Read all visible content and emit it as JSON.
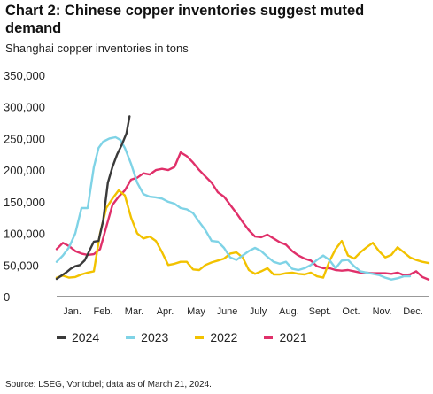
{
  "header": {
    "title": "Chart 2: Chinese copper inventories suggest muted demand",
    "subtitle": "Shanghai copper inventories in tons"
  },
  "source": "Source: LSEG, Vontobel; data as of March 21, 2024.",
  "chart_data": {
    "type": "line",
    "title": "Chart 2: Chinese copper inventories suggest muted demand",
    "subtitle": "Shanghai copper inventories in tons",
    "xlabel": "",
    "ylabel": "",
    "ylim": [
      0,
      350000
    ],
    "yticks": [
      0,
      50000,
      100000,
      150000,
      200000,
      250000,
      300000,
      350000
    ],
    "ytick_labels": [
      "0",
      "50,000",
      "100,000",
      "150,000",
      "200,000",
      "250,000",
      "300,000",
      "350,000"
    ],
    "xlim": [
      0,
      12
    ],
    "month_labels": [
      "Jan.",
      "Feb.",
      "Mar.",
      "Apr.",
      "May",
      "June",
      "July",
      "Aug.",
      "Sept.",
      "Oct.",
      "Nov.",
      "Dec."
    ],
    "grid": false,
    "legend_position": "bottom",
    "series": [
      {
        "name": "2024",
        "color": "#3a3a3a",
        "x": [
          0.0,
          0.15,
          0.3,
          0.45,
          0.6,
          0.75,
          0.9,
          1.05,
          1.2,
          1.35,
          1.5,
          1.65,
          1.8,
          1.95,
          2.1,
          2.25,
          2.35
        ],
        "y": [
          28000,
          33000,
          38000,
          44000,
          48000,
          50000,
          57000,
          72000,
          87000,
          88000,
          120000,
          180000,
          205000,
          225000,
          240000,
          258000,
          285000
        ]
      },
      {
        "name": "2023",
        "color": "#7fd3e6",
        "x": [
          0.0,
          0.2,
          0.4,
          0.6,
          0.8,
          1.0,
          1.2,
          1.35,
          1.5,
          1.7,
          1.9,
          2.05,
          2.2,
          2.4,
          2.6,
          2.8,
          3.0,
          3.2,
          3.4,
          3.6,
          3.8,
          4.0,
          4.2,
          4.4,
          4.6,
          4.8,
          5.0,
          5.2,
          5.4,
          5.6,
          5.8,
          6.0,
          6.2,
          6.4,
          6.6,
          6.8,
          7.0,
          7.2,
          7.4,
          7.6,
          7.8,
          8.0,
          8.2,
          8.4,
          8.6,
          8.8,
          9.0,
          9.2,
          9.4,
          9.6,
          9.8,
          10.0,
          10.2,
          10.4,
          10.6,
          10.8,
          11.0,
          11.2,
          11.4
        ],
        "y": [
          55000,
          65000,
          78000,
          100000,
          140000,
          140000,
          205000,
          235000,
          245000,
          250000,
          252000,
          248000,
          235000,
          210000,
          180000,
          162000,
          158000,
          157000,
          155000,
          150000,
          147000,
          140000,
          138000,
          132000,
          118000,
          105000,
          88000,
          87000,
          77000,
          62000,
          58000,
          65000,
          72000,
          77000,
          72000,
          63000,
          55000,
          52000,
          55000,
          44000,
          42000,
          45000,
          50000,
          58000,
          65000,
          58000,
          45000,
          57000,
          58000,
          48000,
          40000,
          38000,
          36000,
          34000,
          30000,
          27000,
          29000,
          32000,
          32000
        ]
      },
      {
        "name": "2022",
        "color": "#f2c200",
        "x": [
          0.0,
          0.2,
          0.4,
          0.6,
          0.8,
          1.0,
          1.2,
          1.4,
          1.6,
          1.8,
          2.0,
          2.2,
          2.4,
          2.6,
          2.8,
          3.0,
          3.2,
          3.4,
          3.6,
          3.8,
          4.0,
          4.2,
          4.4,
          4.6,
          4.8,
          5.0,
          5.2,
          5.4,
          5.6,
          5.8,
          6.0,
          6.2,
          6.4,
          6.6,
          6.8,
          7.0,
          7.2,
          7.4,
          7.6,
          7.8,
          8.0,
          8.2,
          8.4,
          8.6,
          8.8,
          9.0,
          9.2,
          9.4,
          9.6,
          9.8,
          10.0,
          10.2,
          10.4,
          10.6,
          10.8,
          11.0,
          11.2,
          11.4,
          11.6,
          11.8,
          12.0
        ],
        "y": [
          30000,
          33000,
          30000,
          31000,
          35000,
          38000,
          40000,
          100000,
          140000,
          155000,
          168000,
          160000,
          125000,
          100000,
          92000,
          95000,
          88000,
          70000,
          50000,
          52000,
          55000,
          55000,
          43000,
          42000,
          50000,
          54000,
          57000,
          60000,
          68000,
          70000,
          62000,
          42000,
          36000,
          40000,
          45000,
          35000,
          35000,
          37000,
          38000,
          36000,
          35000,
          38000,
          32000,
          30000,
          56000,
          75000,
          88000,
          65000,
          60000,
          70000,
          78000,
          85000,
          72000,
          62000,
          66000,
          78000,
          70000,
          62000,
          58000,
          55000,
          53000
        ]
      },
      {
        "name": "2021",
        "color": "#e0306a",
        "x": [
          0.0,
          0.2,
          0.4,
          0.6,
          0.8,
          1.0,
          1.2,
          1.4,
          1.6,
          1.8,
          2.0,
          2.2,
          2.4,
          2.6,
          2.8,
          3.0,
          3.2,
          3.4,
          3.6,
          3.8,
          4.0,
          4.2,
          4.4,
          4.6,
          4.8,
          5.0,
          5.2,
          5.4,
          5.6,
          5.8,
          6.0,
          6.2,
          6.4,
          6.6,
          6.8,
          7.0,
          7.2,
          7.4,
          7.6,
          7.8,
          8.0,
          8.2,
          8.4,
          8.6,
          8.8,
          9.0,
          9.2,
          9.4,
          9.6,
          9.8,
          10.0,
          10.2,
          10.4,
          10.6,
          10.8,
          11.0,
          11.2,
          11.4,
          11.6,
          11.8,
          12.0
        ],
        "y": [
          75000,
          85000,
          80000,
          72000,
          68000,
          66000,
          67000,
          75000,
          110000,
          145000,
          158000,
          168000,
          185000,
          188000,
          195000,
          193000,
          200000,
          202000,
          200000,
          205000,
          228000,
          222000,
          212000,
          200000,
          190000,
          180000,
          165000,
          158000,
          145000,
          132000,
          118000,
          105000,
          95000,
          94000,
          98000,
          92000,
          86000,
          82000,
          72000,
          65000,
          60000,
          57000,
          48000,
          45000,
          45000,
          42000,
          41000,
          42000,
          40000,
          38000,
          38000,
          37000,
          37000,
          37000,
          36000,
          38000,
          34000,
          35000,
          40000,
          31000,
          27000
        ]
      }
    ]
  }
}
